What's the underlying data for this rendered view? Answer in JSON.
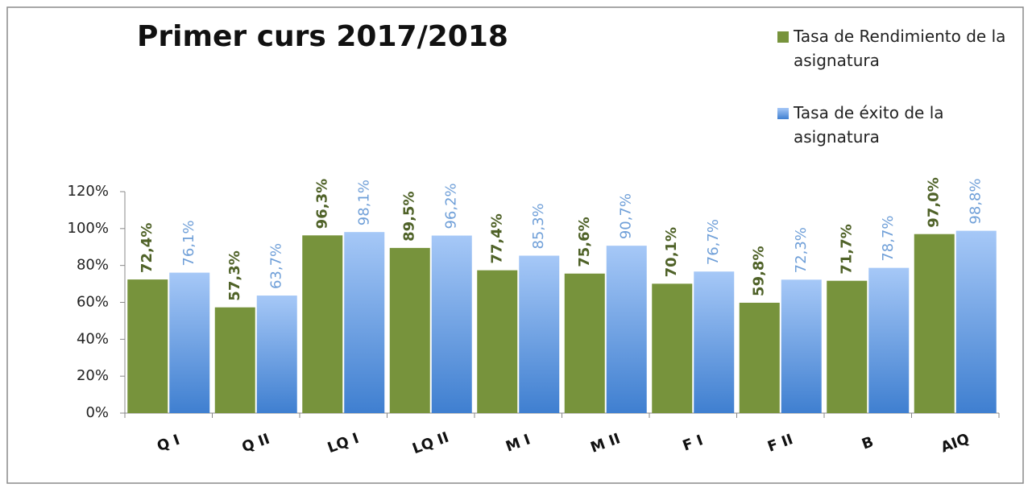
{
  "chart_data": {
    "type": "bar",
    "title": "Primer curs 2017/2018",
    "categories": [
      "Q I",
      "Q II",
      "LQ I",
      "LQ II",
      "M I",
      "M II",
      "F I",
      "F II",
      "B",
      "AIQ"
    ],
    "series": [
      {
        "name": "Tasa de Rendimiento de la asignatura",
        "color": "#77933c",
        "values": [
          72.4,
          57.3,
          96.3,
          89.5,
          77.4,
          75.6,
          70.1,
          59.8,
          71.7,
          97.0
        ],
        "value_labels": [
          "72,4%",
          "57,3%",
          "96,3%",
          "89,5%",
          "77,4%",
          "75,6%",
          "70,1%",
          "59,8%",
          "71,7%",
          "97,0%"
        ]
      },
      {
        "name": "Tasa de éxito de la asignatura",
        "color": "#a6c8f7",
        "values": [
          76.1,
          63.7,
          98.1,
          96.2,
          85.3,
          90.7,
          76.7,
          72.3,
          78.7,
          98.8
        ],
        "value_labels": [
          "76,1%",
          "63,7%",
          "98,1%",
          "96,2%",
          "85,3%",
          "90,7%",
          "76,7%",
          "72,3%",
          "78,7%",
          "98,8%"
        ]
      }
    ],
    "ylim": [
      0,
      120
    ],
    "yticks": [
      {
        "value": 0,
        "label": "0%"
      },
      {
        "value": 20,
        "label": "20%"
      },
      {
        "value": 40,
        "label": "40%"
      },
      {
        "value": 60,
        "label": "60%"
      },
      {
        "value": 80,
        "label": "80%"
      },
      {
        "value": 100,
        "label": "100%"
      },
      {
        "value": 120,
        "label": "120%"
      }
    ],
    "grid": false
  }
}
